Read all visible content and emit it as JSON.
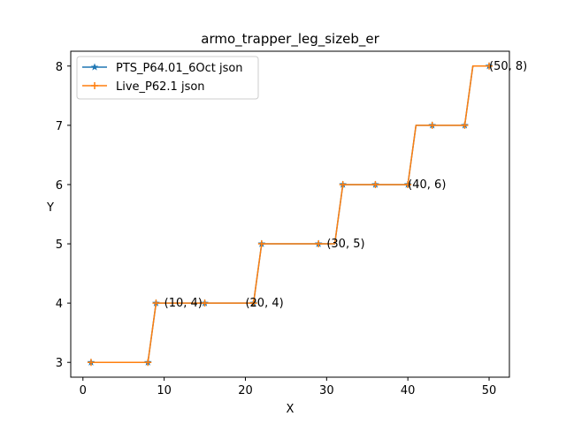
{
  "chart_data": {
    "type": "line",
    "title": "armo_trapper_leg_sizeb_er",
    "xlabel": "X",
    "ylabel": "Y",
    "xlim": [
      -1.5,
      52.5
    ],
    "ylim": [
      2.75,
      8.25
    ],
    "xticks": [
      0,
      10,
      20,
      30,
      40,
      50
    ],
    "yticks": [
      3,
      4,
      5,
      6,
      7,
      8
    ],
    "grid": false,
    "legend_position": "upper-left",
    "series": [
      {
        "name": "PTS_P64.01_6Oct json",
        "color": "#1f77b4",
        "marker": "star",
        "x": [
          1,
          8,
          9,
          15,
          21,
          22,
          29,
          31,
          32,
          36,
          40,
          41,
          43,
          47,
          48,
          50
        ],
        "y": [
          3,
          3,
          4,
          4,
          4,
          5,
          5,
          5,
          6,
          6,
          6,
          7,
          7,
          7,
          8,
          8
        ],
        "marker_x": [
          1,
          8,
          9,
          15,
          21,
          22,
          29,
          32,
          36,
          40,
          43,
          47,
          50
        ],
        "marker_y": [
          3,
          3,
          4,
          4,
          4,
          5,
          5,
          6,
          6,
          6,
          7,
          7,
          8
        ]
      },
      {
        "name": "Live_P62.1 json",
        "color": "#ff7f0e",
        "marker": "plus",
        "x": [
          1,
          8,
          9,
          15,
          21,
          22,
          29,
          31,
          32,
          36,
          40,
          41,
          43,
          47,
          48,
          50
        ],
        "y": [
          3,
          3,
          4,
          4,
          4,
          5,
          5,
          5,
          6,
          6,
          6,
          7,
          7,
          7,
          8,
          8
        ],
        "marker_x": [
          1,
          8,
          9,
          15,
          21,
          22,
          29,
          32,
          36,
          40,
          43,
          47,
          50
        ],
        "marker_y": [
          3,
          3,
          4,
          4,
          4,
          5,
          5,
          6,
          6,
          6,
          7,
          7,
          8
        ]
      }
    ],
    "annotations": [
      {
        "text": "(10, 4)",
        "x": 10,
        "y": 4
      },
      {
        "text": "(20, 4)",
        "x": 20,
        "y": 4
      },
      {
        "text": "(30, 5)",
        "x": 30,
        "y": 5
      },
      {
        "text": "(40, 6)",
        "x": 40,
        "y": 6
      },
      {
        "text": "(50, 8)",
        "x": 50,
        "y": 8
      }
    ]
  }
}
